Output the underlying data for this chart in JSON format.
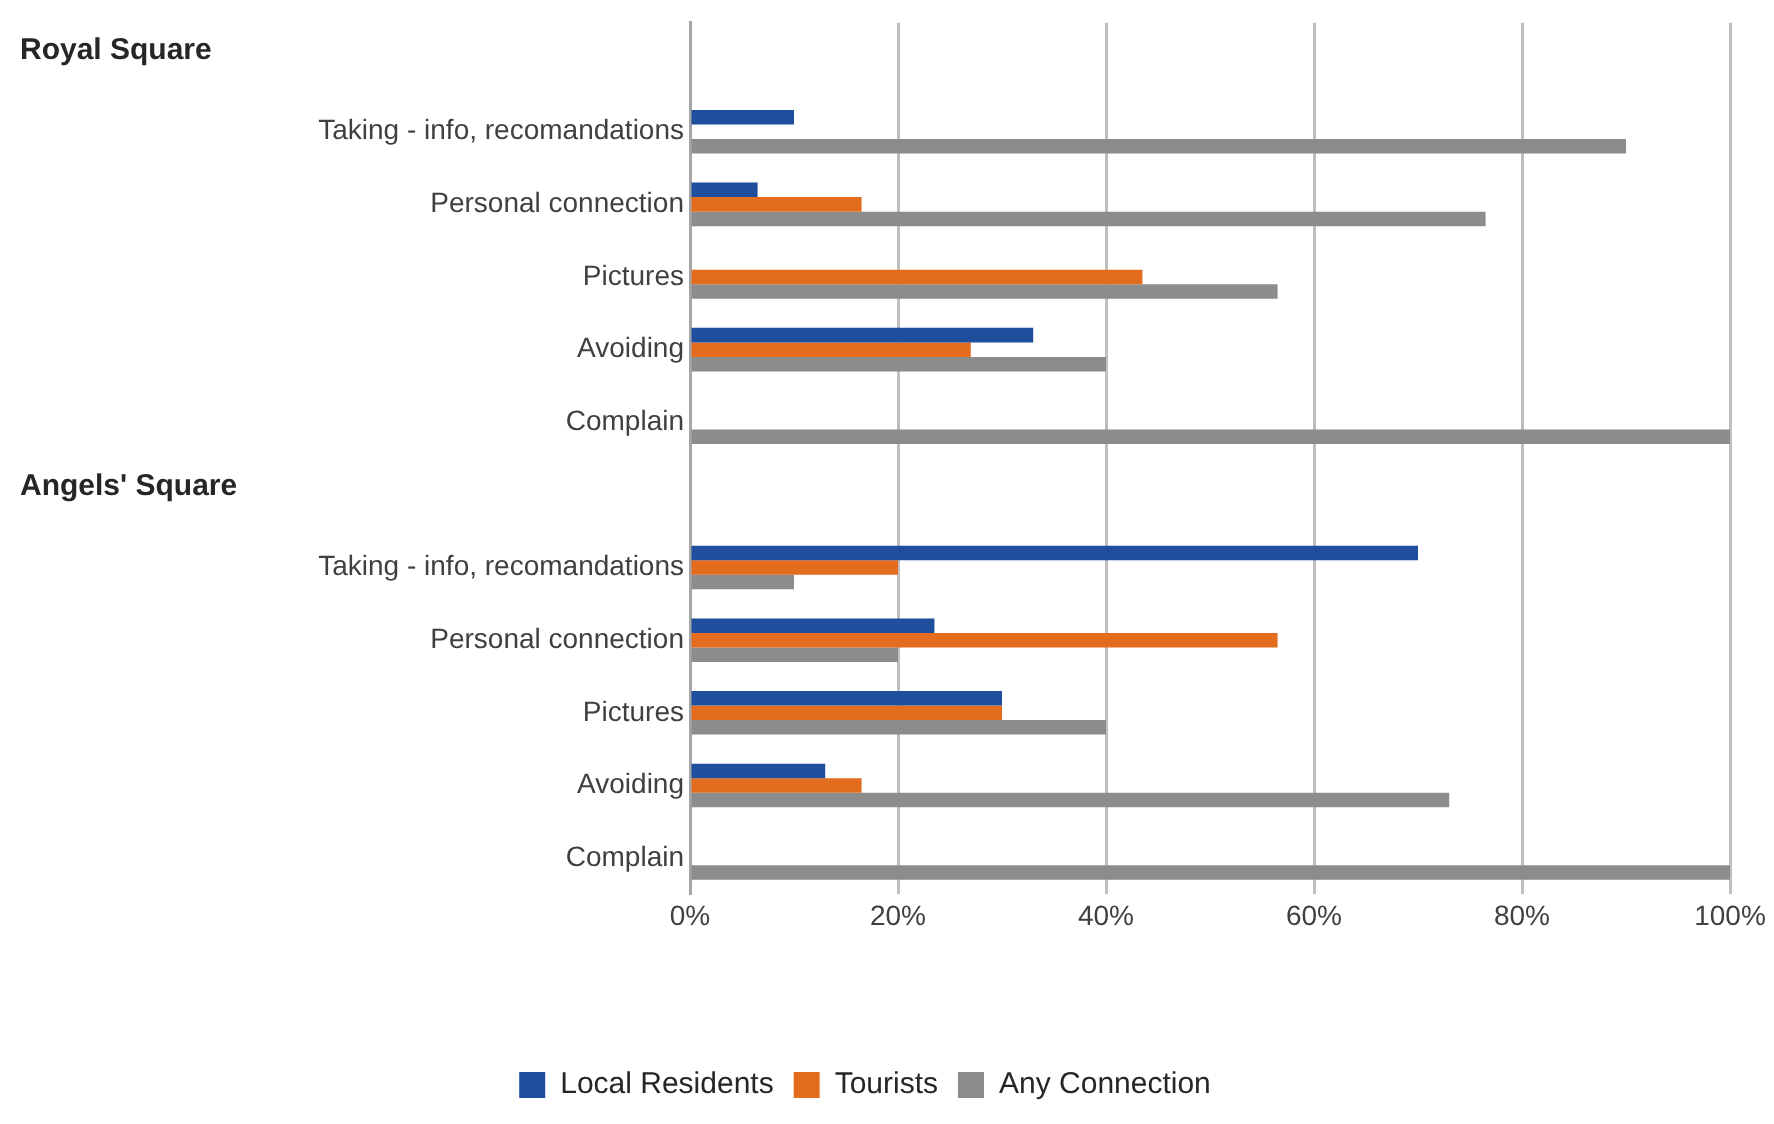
{
  "chart_data": {
    "type": "bar",
    "orientation": "horizontal",
    "annotations": [
      "Royal Square",
      "Angels' Square"
    ],
    "categories": [
      null,
      "Taking - info, recomandations",
      "Personal connection",
      "Pictures",
      "Avoiding",
      "Complain",
      null,
      "Taking - info, recomandations",
      "Personal connection",
      "Pictures",
      "Avoiding",
      "Complain"
    ],
    "series": [
      {
        "name": "Local Residents",
        "color": "#1f4e9c",
        "values": [
          null,
          10,
          6.5,
          0,
          33,
          0,
          null,
          70,
          23.5,
          30,
          13,
          0
        ]
      },
      {
        "name": "Tourists",
        "color": "#e36c1f",
        "values": [
          null,
          0,
          16.5,
          43.5,
          27,
          0,
          null,
          20,
          56.5,
          30,
          16.5,
          0
        ]
      },
      {
        "name": "Any Connection",
        "color": "#8c8c8c",
        "values": [
          null,
          90,
          76.5,
          56.5,
          40,
          100,
          null,
          10,
          20,
          40,
          73,
          100
        ]
      }
    ],
    "xlim": [
      0,
      100
    ],
    "xticks": [
      {
        "value": 0,
        "label": "0%"
      },
      {
        "value": 20,
        "label": "20%"
      },
      {
        "value": 40,
        "label": "40%"
      },
      {
        "value": 60,
        "label": "60%"
      },
      {
        "value": 80,
        "label": "80%"
      },
      {
        "value": 100,
        "label": "100%"
      }
    ],
    "grid": "x",
    "legend": "bottom"
  }
}
